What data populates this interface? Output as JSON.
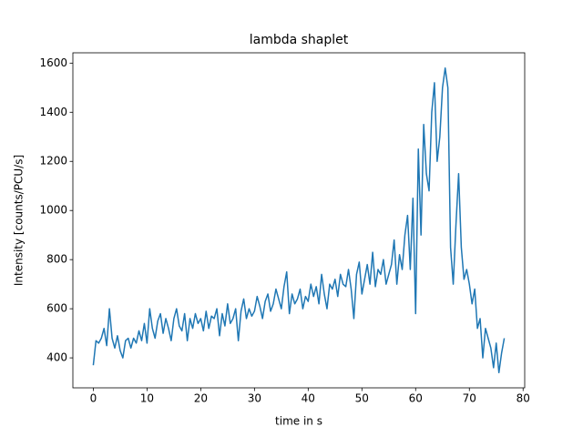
{
  "chart_data": {
    "type": "line",
    "title": "lambda shaplet",
    "xlabel": "time in s",
    "ylabel": "Intensity [counts/PCU/s]",
    "x": [
      0,
      0.5,
      1,
      1.5,
      2,
      2.5,
      3,
      3.5,
      4,
      4.5,
      5,
      5.5,
      6,
      6.5,
      7,
      7.5,
      8,
      8.5,
      9,
      9.5,
      10,
      10.5,
      11,
      11.5,
      12,
      12.5,
      13,
      13.5,
      14,
      14.5,
      15,
      15.5,
      16,
      16.5,
      17,
      17.5,
      18,
      18.5,
      19,
      19.5,
      20,
      20.5,
      21,
      21.5,
      22,
      22.5,
      23,
      23.5,
      24,
      24.5,
      25,
      25.5,
      26,
      26.5,
      27,
      27.5,
      28,
      28.5,
      29,
      29.5,
      30,
      30.5,
      31,
      31.5,
      32,
      32.5,
      33,
      33.5,
      34,
      34.5,
      35,
      35.5,
      36,
      36.5,
      37,
      37.5,
      38,
      38.5,
      39,
      39.5,
      40,
      40.5,
      41,
      41.5,
      42,
      42.5,
      43,
      43.5,
      44,
      44.5,
      45,
      45.5,
      46,
      46.5,
      47,
      47.5,
      48,
      48.5,
      49,
      49.5,
      50,
      50.5,
      51,
      51.5,
      52,
      52.5,
      53,
      53.5,
      54,
      54.5,
      55,
      55.5,
      56,
      56.5,
      57,
      57.5,
      58,
      58.5,
      59,
      59.5,
      60,
      60.5,
      61,
      61.5,
      62,
      62.5,
      63,
      63.5,
      64,
      64.5,
      65,
      65.5,
      66,
      66.5,
      67,
      67.5,
      68,
      68.5,
      69,
      69.5,
      70,
      70.5,
      71,
      71.5,
      72,
      72.5,
      73,
      73.5,
      74,
      74.5,
      75,
      75.5,
      76,
      76.5
    ],
    "series": [
      {
        "color": "#1f77b4",
        "values": [
          370,
          470,
          460,
          480,
          520,
          450,
          600,
          480,
          440,
          490,
          430,
          400,
          470,
          480,
          440,
          480,
          460,
          510,
          470,
          540,
          460,
          600,
          520,
          480,
          550,
          580,
          500,
          560,
          520,
          470,
          560,
          600,
          530,
          510,
          580,
          470,
          560,
          520,
          580,
          540,
          560,
          510,
          590,
          520,
          570,
          560,
          600,
          490,
          580,
          530,
          620,
          540,
          560,
          600,
          470,
          590,
          640,
          560,
          600,
          570,
          590,
          650,
          610,
          560,
          630,
          660,
          590,
          620,
          680,
          640,
          600,
          690,
          750,
          580,
          660,
          620,
          640,
          680,
          600,
          650,
          630,
          700,
          650,
          690,
          620,
          740,
          660,
          600,
          700,
          680,
          720,
          650,
          740,
          700,
          690,
          760,
          680,
          560,
          740,
          790,
          660,
          720,
          780,
          700,
          830,
          690,
          760,
          740,
          800,
          700,
          740,
          780,
          880,
          700,
          820,
          760,
          900,
          980,
          760,
          1050,
          580,
          1250,
          900,
          1350,
          1150,
          1080,
          1400,
          1520,
          1200,
          1300,
          1500,
          1580,
          1500,
          850,
          700,
          940,
          1150,
          850,
          720,
          760,
          700,
          620,
          680,
          520,
          560,
          400,
          520,
          480,
          440,
          360,
          460,
          340,
          420,
          480
        ]
      }
    ],
    "xlim": [
      -3.8,
      80.3
    ],
    "ylim": [
      278,
      1642
    ],
    "xticks": [
      0,
      10,
      20,
      30,
      40,
      50,
      60,
      70,
      80
    ],
    "yticks": [
      400,
      600,
      800,
      1000,
      1200,
      1400,
      1600
    ]
  }
}
